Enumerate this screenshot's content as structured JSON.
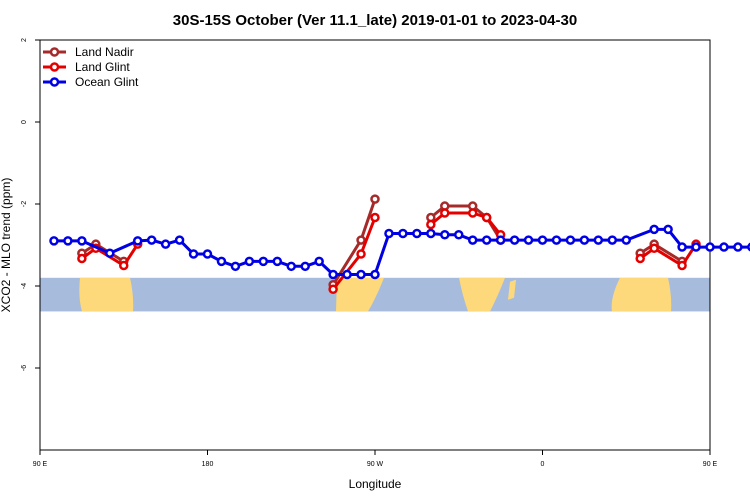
{
  "chart_data": {
    "type": "line",
    "title": "30S-15S October (Ver 11.1_late)   2019-01-01 to 2023-04-30",
    "xlabel": "Longitude",
    "ylabel": "XCO2 - MLO trend (ppm)",
    "xlim": [
      90,
      450
    ],
    "ylim": [
      -8,
      2
    ],
    "x_ticks": [
      {
        "value": 90,
        "label": "90 E"
      },
      {
        "value": 180,
        "label": "180"
      },
      {
        "value": 270,
        "label": "90 W"
      },
      {
        "value": 360,
        "label": "0"
      },
      {
        "value": 450,
        "label": "90 E"
      },
      {
        "value": 540,
        "label": "180"
      }
    ],
    "y_ticks": [
      {
        "value": 2,
        "label": "2"
      },
      {
        "value": 0,
        "label": "0"
      },
      {
        "value": -2,
        "label": "-2"
      },
      {
        "value": -4,
        "label": "-4"
      },
      {
        "value": -6,
        "label": "-6"
      }
    ],
    "legend_position": "top-left",
    "map_band": {
      "lat_range": [
        -30,
        -15
      ],
      "y_top": -3.8,
      "y_bottom": -4.62,
      "ocean_color": "#a7bcdc",
      "land_color": "#fdd97c"
    },
    "series": [
      {
        "name": "Land Nadir",
        "color": "#a52a2a",
        "segments": [
          {
            "x": [
              112.5,
              120,
              135
            ],
            "y": [
              -3.2,
              -2.98,
              -3.4
            ]
          },
          {
            "x": [
              247.5,
              262.5,
              270
            ],
            "y": [
              -3.97,
              -2.88,
              -1.88
            ]
          },
          {
            "x": [
              300,
              307.5,
              322.5,
              330,
              337.5
            ],
            "y": [
              -2.33,
              -2.05,
              -2.05,
              -2.33,
              -2.88
            ]
          },
          {
            "x": [
              412.5,
              420,
              435
            ],
            "y": [
              -3.2,
              -2.98,
              -3.4
            ]
          }
        ]
      },
      {
        "name": "Land Glint",
        "color": "#e50000",
        "segments": [
          {
            "x": [
              112.5,
              120,
              135,
              142.5
            ],
            "y": [
              -3.33,
              -3.08,
              -3.5,
              -2.98
            ]
          },
          {
            "x": [
              247.5,
              262.5,
              270
            ],
            "y": [
              -4.08,
              -3.22,
              -2.33
            ]
          },
          {
            "x": [
              300,
              307.5,
              322.5,
              330,
              337.5
            ],
            "y": [
              -2.5,
              -2.22,
              -2.22,
              -2.33,
              -2.75
            ]
          },
          {
            "x": [
              412.5,
              420,
              435,
              442.5
            ],
            "y": [
              -3.33,
              -3.08,
              -3.5,
              -2.98
            ]
          }
        ]
      },
      {
        "name": "Ocean Glint",
        "color": "#0000e5",
        "segments": [
          {
            "x": [
              97.5,
              105,
              112.5,
              127.5,
              142.5,
              150,
              157.5,
              165,
              172.5,
              180,
              187.5,
              195,
              202.5,
              210,
              217.5,
              225,
              232.5,
              240,
              247.5,
              255,
              262.5,
              270,
              277.5,
              285,
              292.5,
              300,
              307.5,
              315,
              322.5,
              330,
              337.5,
              345,
              352.5,
              360,
              367.5,
              375,
              382.5,
              390,
              397.5,
              405,
              420,
              427.5,
              435,
              442.5,
              450,
              457.5,
              465,
              472.5,
              480,
              487.5,
              495,
              502.5,
              510,
              517.5,
              525,
              532.5,
              540
            ],
            "y": [
              -2.9,
              -2.9,
              -2.9,
              -3.2,
              -2.9,
              -2.88,
              -2.98,
              -2.88,
              -3.22,
              -3.22,
              -3.4,
              -3.52,
              -3.4,
              -3.4,
              -3.4,
              -3.52,
              -3.52,
              -3.4,
              -3.72,
              -3.72,
              -3.72,
              -3.72,
              -2.72,
              -2.72,
              -2.72,
              -2.72,
              -2.75,
              -2.75,
              -2.88,
              -2.88,
              -2.88,
              -2.88,
              -2.88,
              -2.88,
              -2.88,
              -2.88,
              -2.88,
              -2.88,
              -2.88,
              -2.88,
              -2.62,
              -2.62,
              -3.05,
              -3.05,
              -3.05,
              -3.05,
              -3.05,
              -3.05,
              -3.05,
              -3.05,
              -3.05,
              -3.05,
              -3.05,
              -3.05,
              -3.05,
              -3.05,
              -3.05
            ]
          }
        ]
      }
    ]
  }
}
